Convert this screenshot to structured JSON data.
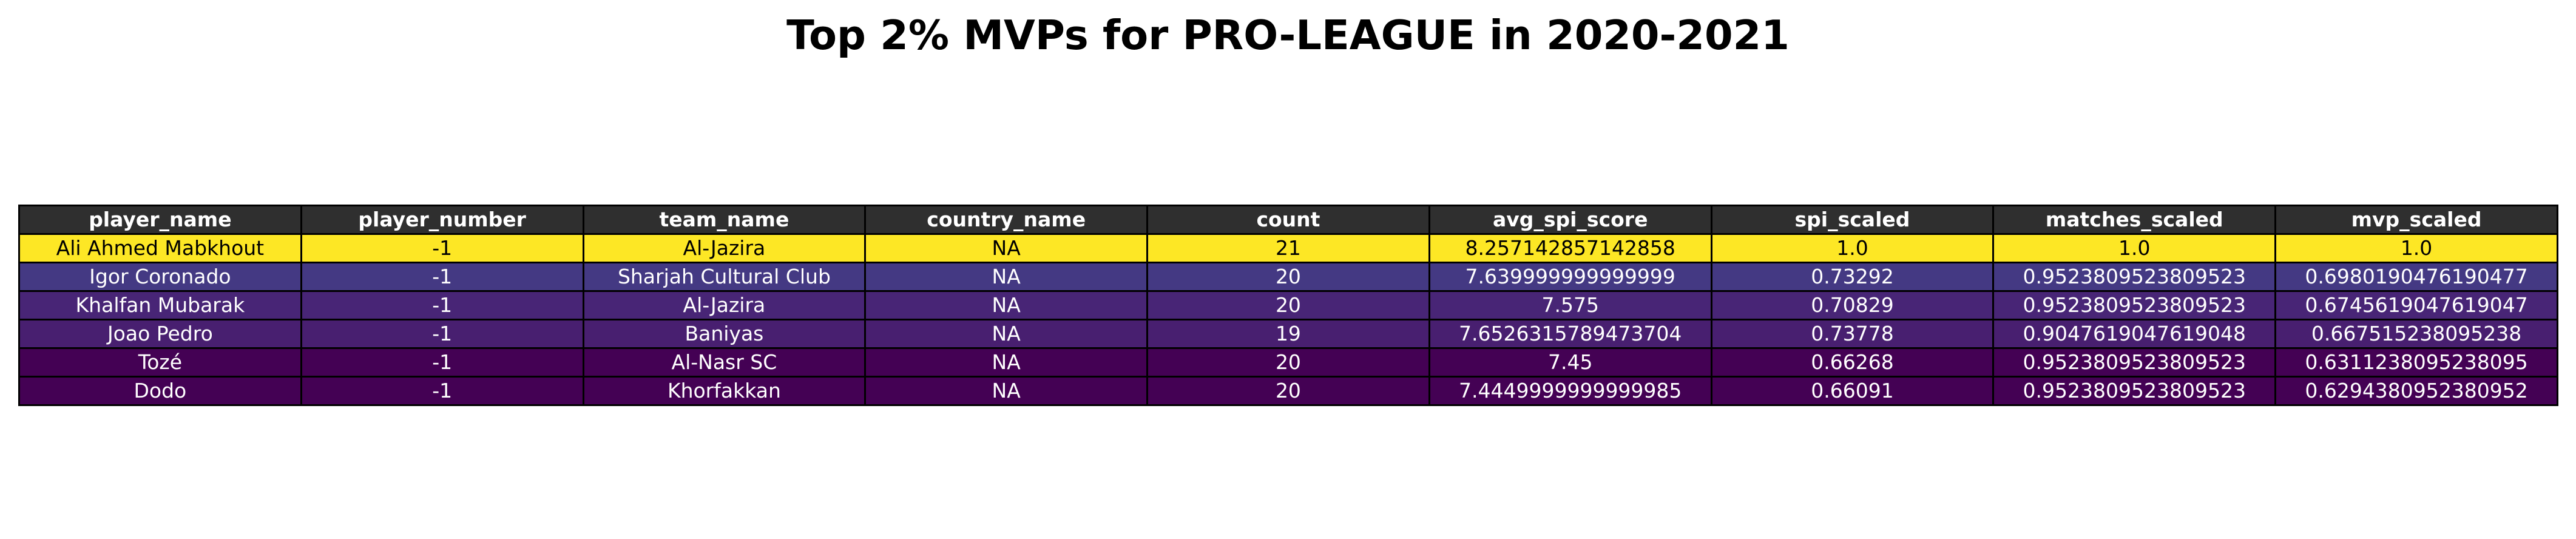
{
  "title": "Top 2% MVPs for PRO-LEAGUE in 2020-2021",
  "chart_data": {
    "type": "table",
    "title": "Top 2% MVPs for PRO-LEAGUE in 2020-2021",
    "columns": [
      "player_name",
      "player_number",
      "team_name",
      "country_name",
      "count",
      "avg_spi_score",
      "spi_scaled",
      "matches_scaled",
      "mvp_scaled"
    ],
    "header_color": "#2f2f2f",
    "header_text_color": "#ffffff",
    "rows": [
      {
        "cells": [
          "Ali Ahmed Mabkhout",
          "-1",
          "Al-Jazira",
          "NA",
          "21",
          "8.257142857142858",
          "1.0",
          "1.0",
          "1.0"
        ],
        "bg": "#fde725",
        "fg": "#000000"
      },
      {
        "cells": [
          "Igor Coronado",
          "-1",
          "Sharjah Cultural Club",
          "NA",
          "20",
          "7.639999999999999",
          "0.73292",
          "0.9523809523809523",
          "0.6980190476190477"
        ],
        "bg": "#443983",
        "fg": "#ffffff"
      },
      {
        "cells": [
          "Khalfan Mubarak",
          "-1",
          "Al-Jazira",
          "NA",
          "20",
          "7.575",
          "0.70829",
          "0.9523809523809523",
          "0.6745619047619047"
        ],
        "bg": "#482576",
        "fg": "#ffffff"
      },
      {
        "cells": [
          "Joao Pedro",
          "-1",
          "Baniyas",
          "NA",
          "19",
          "7.6526315789473704",
          "0.73778",
          "0.9047619047619048",
          "0.667515238095238"
        ],
        "bg": "#481f70",
        "fg": "#ffffff"
      },
      {
        "cells": [
          "Tozé",
          "-1",
          "Al-Nasr SC",
          "NA",
          "20",
          "7.45",
          "0.66268",
          "0.9523809523809523",
          "0.6311238095238095"
        ],
        "bg": "#440154",
        "fg": "#ffffff"
      },
      {
        "cells": [
          "Dodo",
          "-1",
          "Khorfakkan",
          "NA",
          "20",
          "7.4449999999999985",
          "0.66091",
          "0.9523809523809523",
          "0.6294380952380952"
        ],
        "bg": "#440154",
        "fg": "#ffffff"
      }
    ]
  }
}
